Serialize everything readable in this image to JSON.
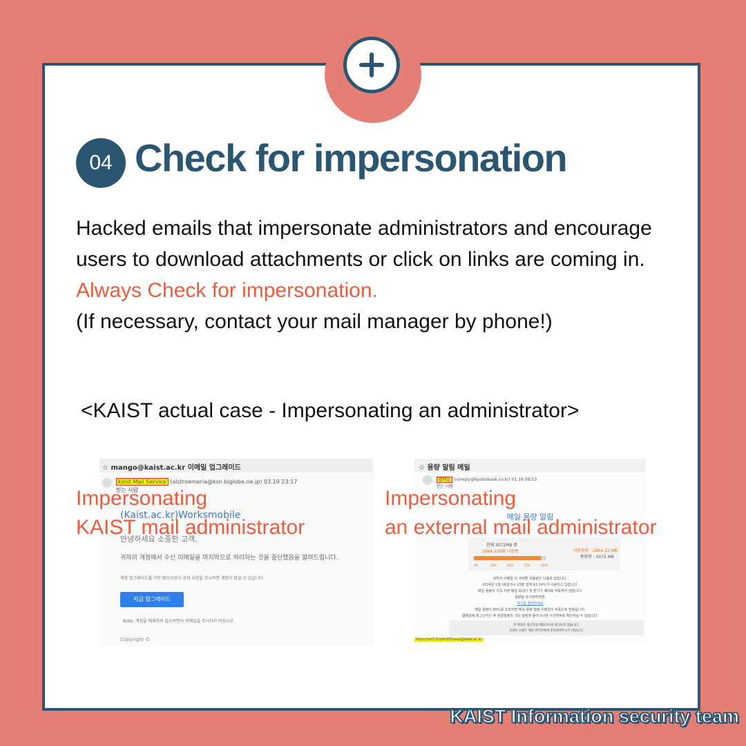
{
  "step": {
    "number": "04",
    "title": "Check for impersonation"
  },
  "body": {
    "line1": "Hacked emails that impersonate administrators and encourage users to download attachments or click on links are coming in. ",
    "accent": "Always Check for impersonation.",
    "line2": "(If necessary, contact your mail manager by phone!)"
  },
  "case_caption": "<KAIST actual case - Impersonating an administrator>",
  "examples": {
    "left": {
      "subject": "☆ mango@kaist.ac.kr 이메일 업그레이드",
      "sender_highlight": "kaist Mail Service",
      "sender_rest": "(alstroemeria@ksn.biglobe.ne.jp)  03.19 23:17",
      "recipient": "받는 사람",
      "brand": "(Kaist.ac.kr)Worksmobile",
      "greeting": "안녕하세요 소중한 고객,",
      "message": "귀하의 계정에서 수신 이메일을 마지막으로 처리하는 것을 중단했음을 알려드립니다.",
      "notice": "계정 업그레이드를 거부 됐으므로이 공지 사항을 무시하면 계정이 잠길 수 있습니다.",
      "button": "지금 업그레이드",
      "note": "Note: 계정을 폐쇄하지 않으려면이 이메일을 무시하지 마십시오",
      "copyright": "Copyright ©",
      "overlay_line1": "Impersonating",
      "overlay_line2": "KAIST mail administrator"
    },
    "right": {
      "subject": "☆ 용량 알림 메일",
      "sender_highlight": "웹메일",
      "sender_rest": "(noreply@kyobobook.co.kr)  01.16 08:53",
      "recipient": "받는 사람",
      "heading": "메일 용량 알림",
      "total": "전체 3072MB 중",
      "used": "2864.22MB  사용중",
      "usage_label": "사용용량 : 2864.22 MB",
      "capacity_label": "총용량 : 3072 MB",
      "usage_fraction": 0.932,
      "scale": [
        "0%",
        "25%",
        "50%",
        "75%",
        "100%"
      ],
      "msg1": "귀하의 이메일         의 서버할 사용량은 다음과 같습니다.",
      "msg2": "2024년 1월 16일 0시 15분 현재 93.24%가 사용되고 있습니다.",
      "msg3": "메일 용량이 가득 차면 메일 보내기 및 받기가 제대로 작동하지 않습니다.",
      "msg4": "용량을 초기화하려면,",
      "link": "여기를 클릭하세요",
      "msg5": "메일 용량이 80%를 초과하면 메일 용량 알림 이메일이 자동으로 전송됩니다.",
      "msg6": "웹메일에 로그인하신 후 환경설정의 기타 설정에 들어가시면 수신여부를 확인하실 수 있습니다.",
      "footer1": "본 메일은 발신전용 메일이므로 회신되지 않습니다.",
      "footer2": "자세한 사항은 해당 관리자에게 문의하여주시기 바랍니다.",
      "url": "https://url2.fr/phhXfl/vaon@kaist.ac.kr",
      "overlay_line1": "Impersonating",
      "overlay_line2": "an external mail administrator"
    }
  },
  "footer": "KAIST Information security team",
  "colors": {
    "background": "#E57F76",
    "navy": "#2B5672",
    "accent": "#EE5B3C"
  }
}
